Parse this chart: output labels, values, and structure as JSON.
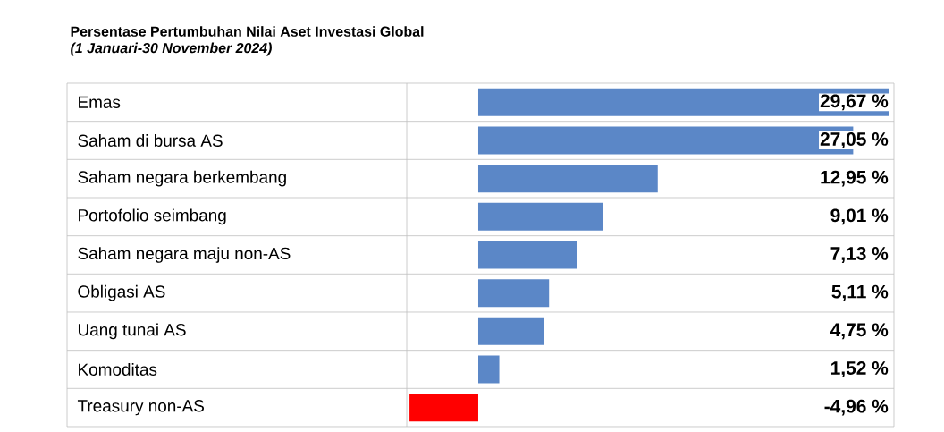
{
  "chart_data": {
    "type": "bar",
    "orientation": "horizontal",
    "title": "Persentase Pertumbuhan Nilai Aset Investasi Global",
    "subtitle": "(1 Januari-30 November 2024)",
    "categories": [
      "Emas",
      "Saham di bursa AS",
      "Saham negara berkembang",
      "Portofolio seimbang",
      "Saham negara maju non-AS",
      "Obligasi AS",
      "Uang tunai AS",
      "Komoditas",
      "Treasury non-AS"
    ],
    "values": [
      29.67,
      27.05,
      12.95,
      9.01,
      7.13,
      5.11,
      4.75,
      1.52,
      -4.96
    ],
    "colors": [
      "#5b87c7",
      "#5b87c7",
      "#5b87c7",
      "#5b87c7",
      "#5b87c7",
      "#5b87c7",
      "#5b87c7",
      "#5b87c7",
      "#ff0000"
    ],
    "value_labels": [
      "29,67 %",
      "27,05 %",
      "12,95 %",
      "9,01 %",
      "7,13 %",
      "5,11 %",
      "4,75 %",
      "1,52 %",
      "-4,96 %"
    ]
  }
}
